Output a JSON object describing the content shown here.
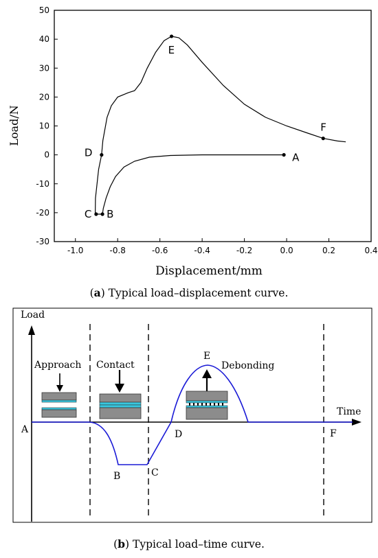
{
  "chart_data": [
    {
      "type": "line",
      "xlabel": "Displacement/mm",
      "ylabel": "Load/N",
      "xlim": [
        -1.1,
        0.4
      ],
      "ylim": [
        -30,
        50
      ],
      "x_ticks": [
        "-1.0",
        "-0.8",
        "-0.6",
        "-0.4",
        "-0.2",
        "0.0",
        "0.2",
        "0.4"
      ],
      "y_ticks": [
        "-30",
        "-20",
        "-10",
        "0",
        "10",
        "20",
        "30",
        "40",
        "50"
      ],
      "grid": false,
      "series": [
        {
          "points": [
            [
              -0.013,
              0
            ],
            [
              -0.2,
              0
            ],
            [
              -0.4,
              0
            ],
            [
              -0.55,
              -0.2
            ],
            [
              -0.65,
              -0.8
            ],
            [
              -0.72,
              -2.2
            ],
            [
              -0.77,
              -4.2
            ],
            [
              -0.81,
              -7.5
            ],
            [
              -0.835,
              -11
            ],
            [
              -0.855,
              -15
            ],
            [
              -0.868,
              -18.5
            ],
            [
              -0.872,
              -20.5
            ],
            [
              -0.9,
              -20.5
            ],
            [
              -0.906,
              -20.3
            ],
            [
              -0.905,
              -15
            ],
            [
              -0.89,
              -5
            ],
            [
              -0.876,
              0
            ],
            [
              -0.87,
              5
            ],
            [
              -0.85,
              13
            ],
            [
              -0.83,
              17
            ],
            [
              -0.8,
              20
            ],
            [
              -0.75,
              21.5
            ],
            [
              -0.72,
              22.2
            ],
            [
              -0.69,
              25
            ],
            [
              -0.66,
              30
            ],
            [
              -0.62,
              35.5
            ],
            [
              -0.58,
              39.5
            ],
            [
              -0.545,
              41
            ],
            [
              -0.51,
              40.5
            ],
            [
              -0.47,
              38
            ],
            [
              -0.4,
              32
            ],
            [
              -0.3,
              24
            ],
            [
              -0.2,
              17.5
            ],
            [
              -0.1,
              13
            ],
            [
              0.0,
              10
            ],
            [
              0.1,
              7.5
            ],
            [
              0.173,
              5.7
            ],
            [
              0.24,
              4.8
            ],
            [
              0.28,
              4.5
            ]
          ]
        }
      ],
      "annotations": [
        {
          "label": "A",
          "x": -0.013,
          "y": 0,
          "marker": true
        },
        {
          "label": "B",
          "x": -0.872,
          "y": -20.5,
          "marker": true
        },
        {
          "label": "C",
          "x": -0.902,
          "y": -20.5,
          "marker": true
        },
        {
          "label": "D",
          "x": -0.876,
          "y": 0,
          "marker": true
        },
        {
          "label": "E",
          "x": -0.545,
          "y": 41,
          "marker": true
        },
        {
          "label": "F",
          "x": 0.173,
          "y": 5.7,
          "marker": true
        }
      ]
    },
    {
      "type": "line",
      "xlabel": "Time",
      "ylabel": "Load",
      "line_color": "#1a1ad6",
      "point_labels": [
        "A",
        "B",
        "C",
        "D",
        "E",
        "F"
      ],
      "phase_labels": [
        "Approach",
        "Contact",
        "Debonding"
      ]
    }
  ],
  "captions": {
    "a_letter": "a",
    "a_text": "Typical load–displacement curve.",
    "b_letter": "b",
    "b_text": "Typical load–time curve."
  }
}
